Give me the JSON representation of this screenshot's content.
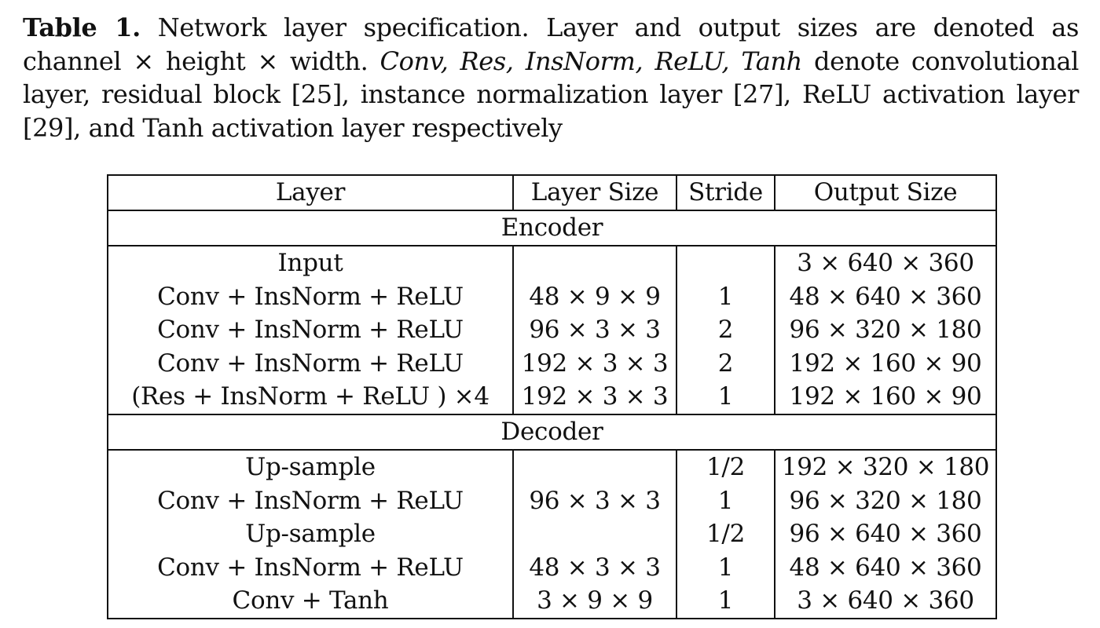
{
  "caption": {
    "label": "Table 1.",
    "before": " Network layer specification. Layer and output sizes are denoted as channel × height × width. ",
    "italic_terms": "Conv, Res, InsNorm, ReLU, Tanh",
    "after": " denote convolutional layer, residual block [25], instance normalization layer [27], ReLU activation layer [29], and Tanh activation layer respectively"
  },
  "table": {
    "headers": [
      "Layer",
      "Layer Size",
      "Stride",
      "Output Size"
    ],
    "sections": [
      {
        "title": "Encoder",
        "rows": [
          [
            "Input",
            "",
            "",
            "3 × 640 × 360"
          ],
          [
            "Conv + InsNorm + ReLU",
            "48 × 9 × 9",
            "1",
            "48 × 640 × 360"
          ],
          [
            "Conv + InsNorm + ReLU",
            "96 × 3 × 3",
            "2",
            "96 × 320 × 180"
          ],
          [
            "Conv + InsNorm + ReLU",
            "192 × 3 × 3",
            "2",
            "192 × 160 × 90"
          ],
          [
            "(Res + InsNorm + ReLU ) ×4",
            "192 × 3 × 3",
            "1",
            "192 × 160 × 90"
          ]
        ]
      },
      {
        "title": "Decoder",
        "rows": [
          [
            "Up-sample",
            "",
            "1/2",
            "192 × 320 × 180"
          ],
          [
            "Conv + InsNorm + ReLU",
            "96 × 3 × 3",
            "1",
            "96 × 320 × 180"
          ],
          [
            "Up-sample",
            "",
            "1/2",
            "96 × 640 × 360"
          ],
          [
            "Conv + InsNorm + ReLU",
            "48 × 3 × 3",
            "1",
            "48 × 640 × 360"
          ],
          [
            "Conv + Tanh",
            "3 × 9 × 9",
            "1",
            "3 × 640 × 360"
          ]
        ]
      }
    ]
  }
}
